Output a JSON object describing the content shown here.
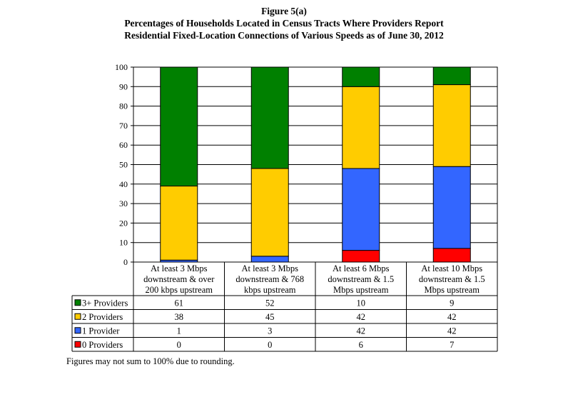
{
  "header": {
    "figure_label": "Figure 5(a)",
    "title_line1": "Percentages of Households Located in Census Tracts Where Providers Report",
    "title_line2": "Residential Fixed-Location Connections of Various Speeds as of June 30, 2012"
  },
  "chart_data": {
    "type": "bar",
    "stacked": true,
    "ylim": [
      0,
      100
    ],
    "yticks": [
      0,
      10,
      20,
      30,
      40,
      50,
      60,
      70,
      80,
      90,
      100
    ],
    "grid": true,
    "legend_placement": "data-table-rows",
    "categories": [
      [
        "At least 3 Mbps",
        "downstream & over",
        "200 kbps upstream"
      ],
      [
        "At least 3 Mbps",
        "downstream & 768",
        "kbps upstream"
      ],
      [
        "At least 6 Mbps",
        "downstream & 1.5",
        "Mbps upstream"
      ],
      [
        "At least 10 Mbps",
        "downstream & 1.5",
        "Mbps upstream"
      ]
    ],
    "series": [
      {
        "name": "3+ Providers",
        "color": "#008000",
        "values": [
          61,
          52,
          10,
          9
        ]
      },
      {
        "name": "2 Providers",
        "color": "#FFCC00",
        "values": [
          38,
          45,
          42,
          42
        ]
      },
      {
        "name": "1 Provider",
        "color": "#3366FF",
        "values": [
          1,
          3,
          42,
          42
        ]
      },
      {
        "name": "0 Providers",
        "color": "#FF0000",
        "values": [
          0,
          0,
          6,
          7
        ]
      }
    ]
  },
  "footnote": "Figures may not sum to 100% due to rounding."
}
